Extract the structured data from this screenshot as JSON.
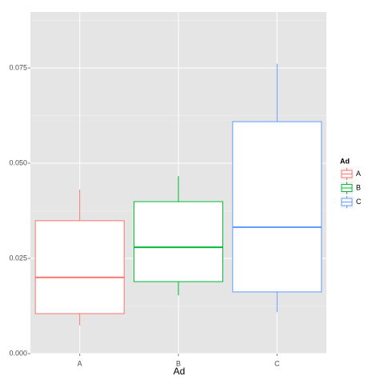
{
  "chart_data": {
    "type": "box",
    "x_label": "Ad",
    "legend_title": "Ad",
    "categories": [
      "A",
      "B",
      "C"
    ],
    "series": [
      {
        "name": "A",
        "color": "#f8766d",
        "min": 0.0074,
        "q1": 0.0105,
        "median": 0.02,
        "q3": 0.0349,
        "max": 0.0431
      },
      {
        "name": "B",
        "color": "#00ba38",
        "min": 0.0153,
        "q1": 0.0189,
        "median": 0.0279,
        "q3": 0.0399,
        "max": 0.0466
      },
      {
        "name": "C",
        "color": "#619cff",
        "min": 0.0109,
        "q1": 0.0162,
        "median": 0.0332,
        "q3": 0.0609,
        "max": 0.0761
      }
    ],
    "ylim": [
      0,
      0.0897
    ],
    "yticks": [
      {
        "value": 0,
        "label": "0.000"
      },
      {
        "value": 0.025,
        "label": "0.025"
      },
      {
        "value": 0.05,
        "label": "0.050"
      },
      {
        "value": 0.075,
        "label": "0.075"
      }
    ],
    "grid": true
  }
}
